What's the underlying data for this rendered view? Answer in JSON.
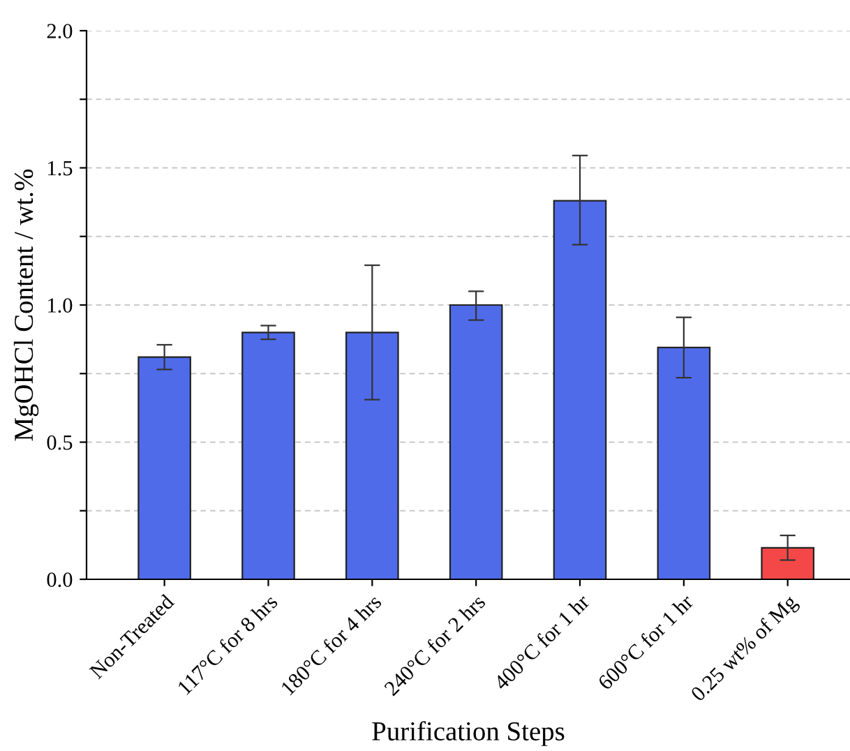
{
  "chart_data": {
    "type": "bar",
    "xlabel": "Purification Steps",
    "ylabel": "MgOHCl Content / wt.%",
    "categories": [
      "Non-Treated",
      "117°C for 8 hrs",
      "180°C for 4 hrs",
      "240°C for 2 hrs",
      "400°C for 1 hr",
      "600°C for 1 hr",
      "0.25 wt% of Mg"
    ],
    "values": [
      0.81,
      0.9,
      0.9,
      1.0,
      1.38,
      0.845,
      0.115
    ],
    "colors": [
      "#4f6bea",
      "#4f6bea",
      "#4f6bea",
      "#4f6bea",
      "#4f6bea",
      "#4f6bea",
      "#f44848"
    ],
    "errors": [
      [
        0.765,
        0.855
      ],
      [
        0.875,
        0.925
      ],
      [
        0.655,
        1.145
      ],
      [
        0.945,
        1.05
      ],
      [
        1.22,
        1.545
      ],
      [
        0.735,
        0.955
      ],
      [
        0.07,
        0.16
      ]
    ],
    "ylim": [
      0,
      2.0
    ],
    "yticks": [
      {
        "value": 0,
        "label": "0.0"
      },
      {
        "value": 0.25,
        "label": null
      },
      {
        "value": 0.5,
        "label": "0.5"
      },
      {
        "value": 0.75,
        "label": null
      },
      {
        "value": 1.0,
        "label": "1.0"
      },
      {
        "value": 1.25,
        "label": null
      },
      {
        "value": 1.5,
        "label": "1.5"
      },
      {
        "value": 1.75,
        "label": null
      },
      {
        "value": 2.0,
        "label": "2.0"
      }
    ],
    "grid": "y"
  }
}
